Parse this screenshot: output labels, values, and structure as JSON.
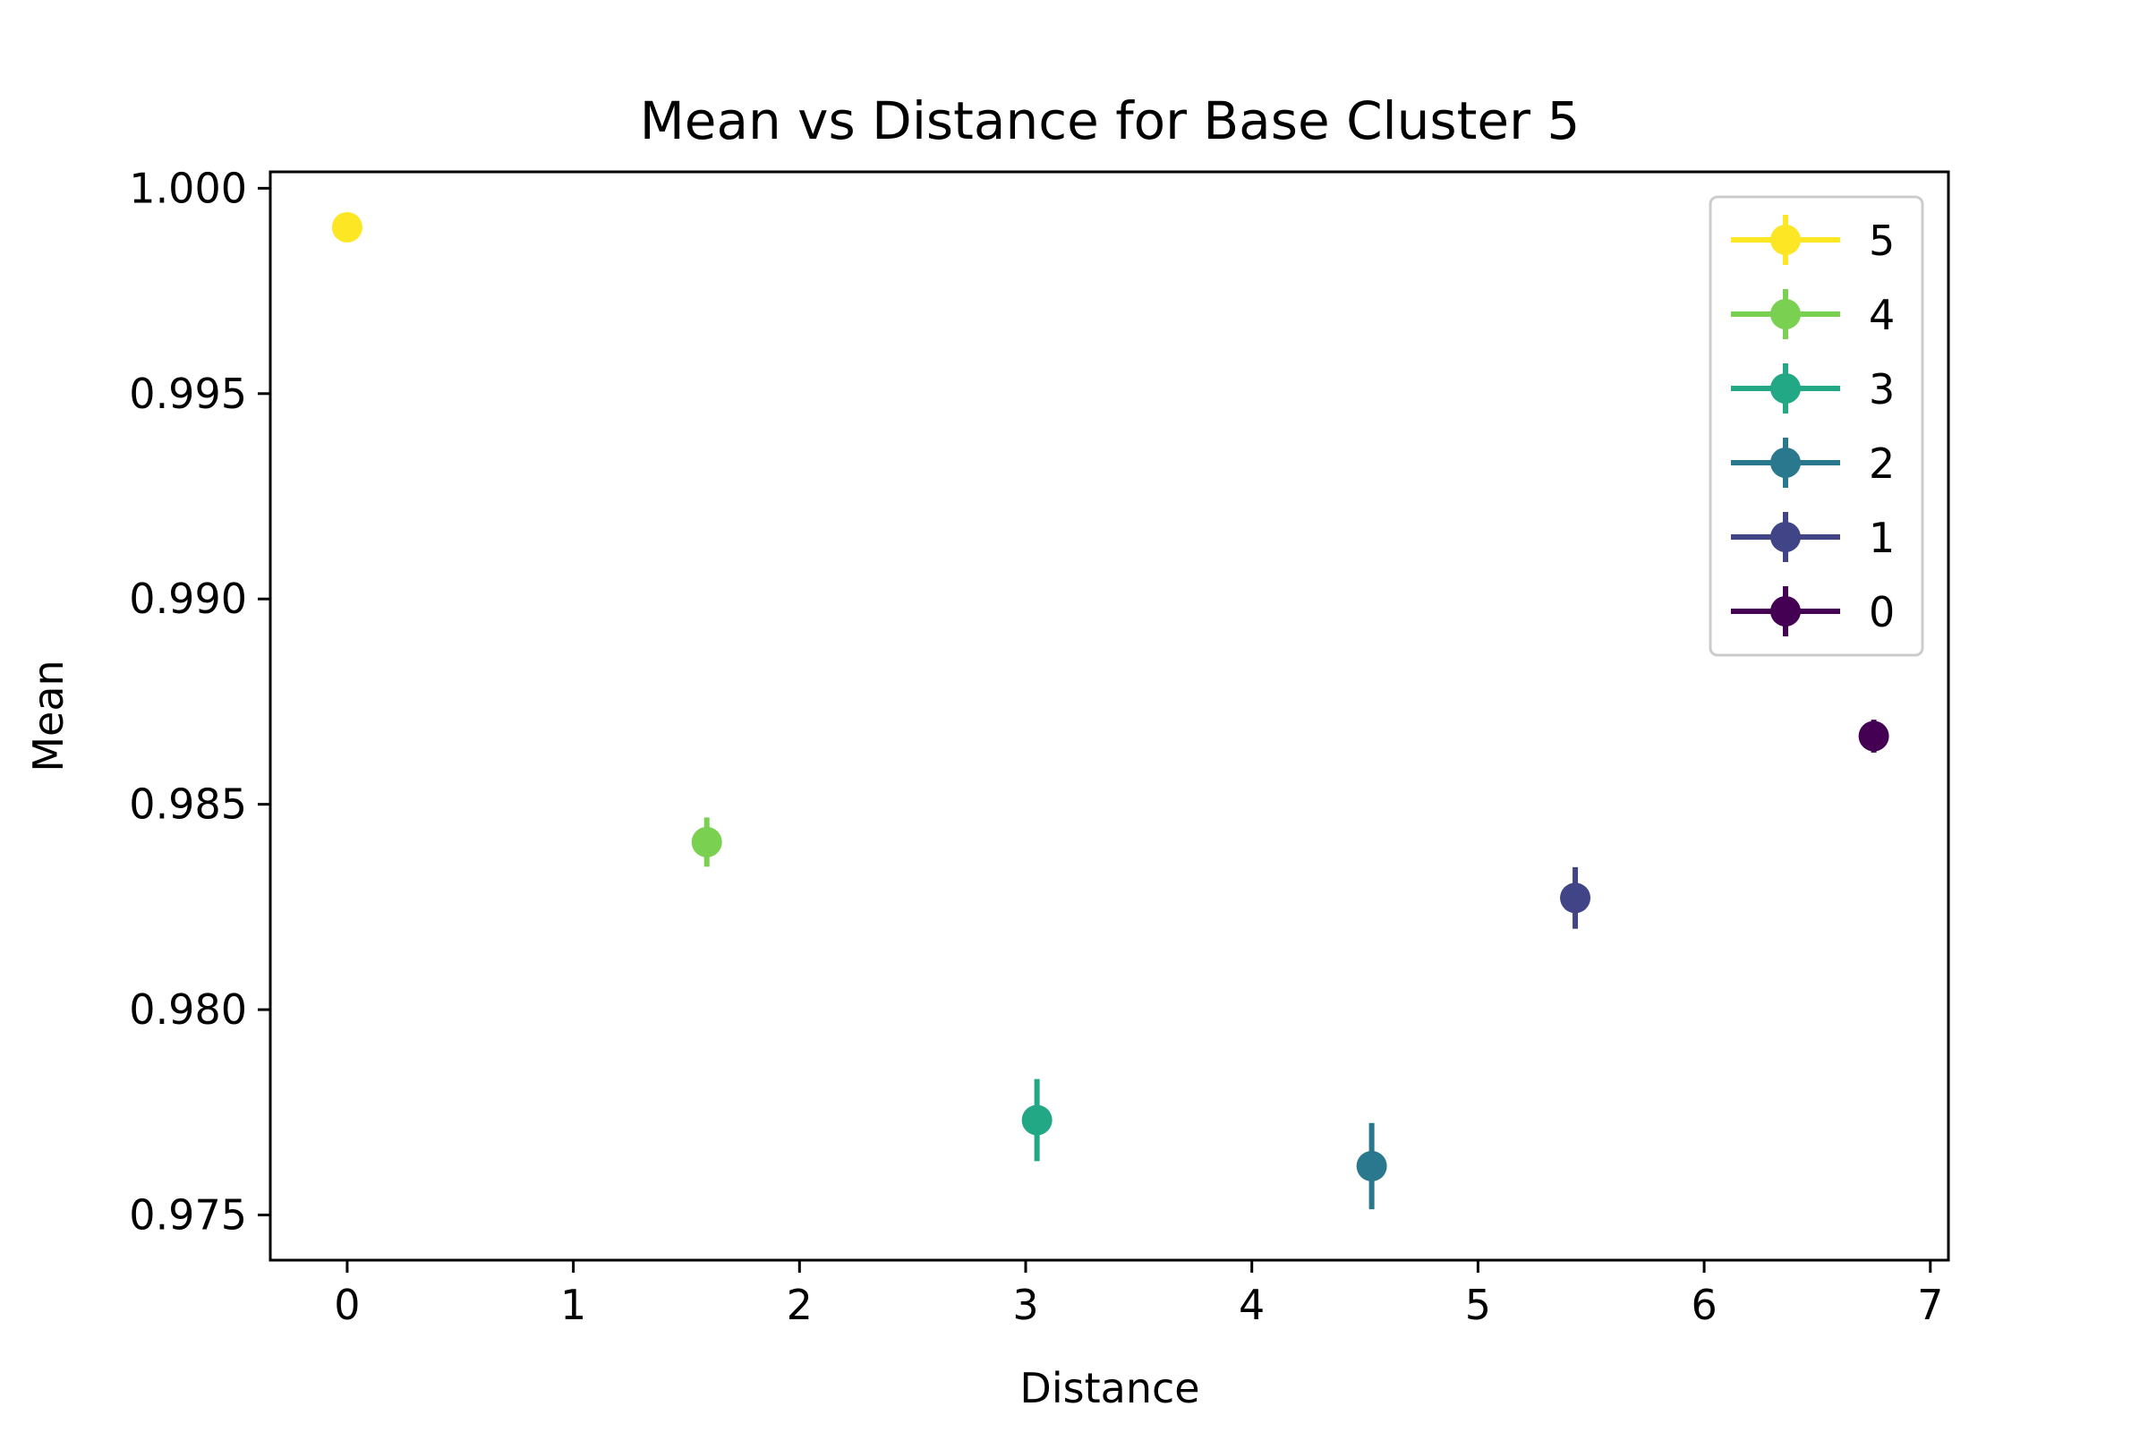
{
  "chart_data": {
    "type": "scatter",
    "title": "Mean vs Distance for Base Cluster 5",
    "xlabel": "Distance",
    "ylabel": "Mean",
    "xlim": [
      -0.34,
      7.08
    ],
    "ylim": [
      0.9739,
      1.0004
    ],
    "xticks": [
      0,
      1,
      2,
      3,
      4,
      5,
      6,
      7
    ],
    "xtick_labels": [
      "0",
      "1",
      "2",
      "3",
      "4",
      "5",
      "6",
      "7"
    ],
    "yticks": [
      0.975,
      0.98,
      0.985,
      0.99,
      0.995,
      1.0
    ],
    "ytick_labels": [
      "0.975",
      "0.980",
      "0.985",
      "0.990",
      "0.995",
      "1.000"
    ],
    "grid": false,
    "legend_position": "top-right",
    "series": [
      {
        "name": "5",
        "color": "#fde725",
        "x": 0.0,
        "y": 0.99905,
        "err": 0.0001
      },
      {
        "name": "4",
        "color": "#7ad151",
        "x": 1.59,
        "y": 0.98408,
        "err": 0.0006
      },
      {
        "name": "3",
        "color": "#22a884",
        "x": 3.05,
        "y": 0.97731,
        "err": 0.001
      },
      {
        "name": "2",
        "color": "#2a788e",
        "x": 4.53,
        "y": 0.97619,
        "err": 0.00105
      },
      {
        "name": "1",
        "color": "#414487",
        "x": 5.43,
        "y": 0.98272,
        "err": 0.00075
      },
      {
        "name": "0",
        "color": "#440154",
        "x": 6.75,
        "y": 0.98666,
        "err": 0.0004
      }
    ]
  }
}
